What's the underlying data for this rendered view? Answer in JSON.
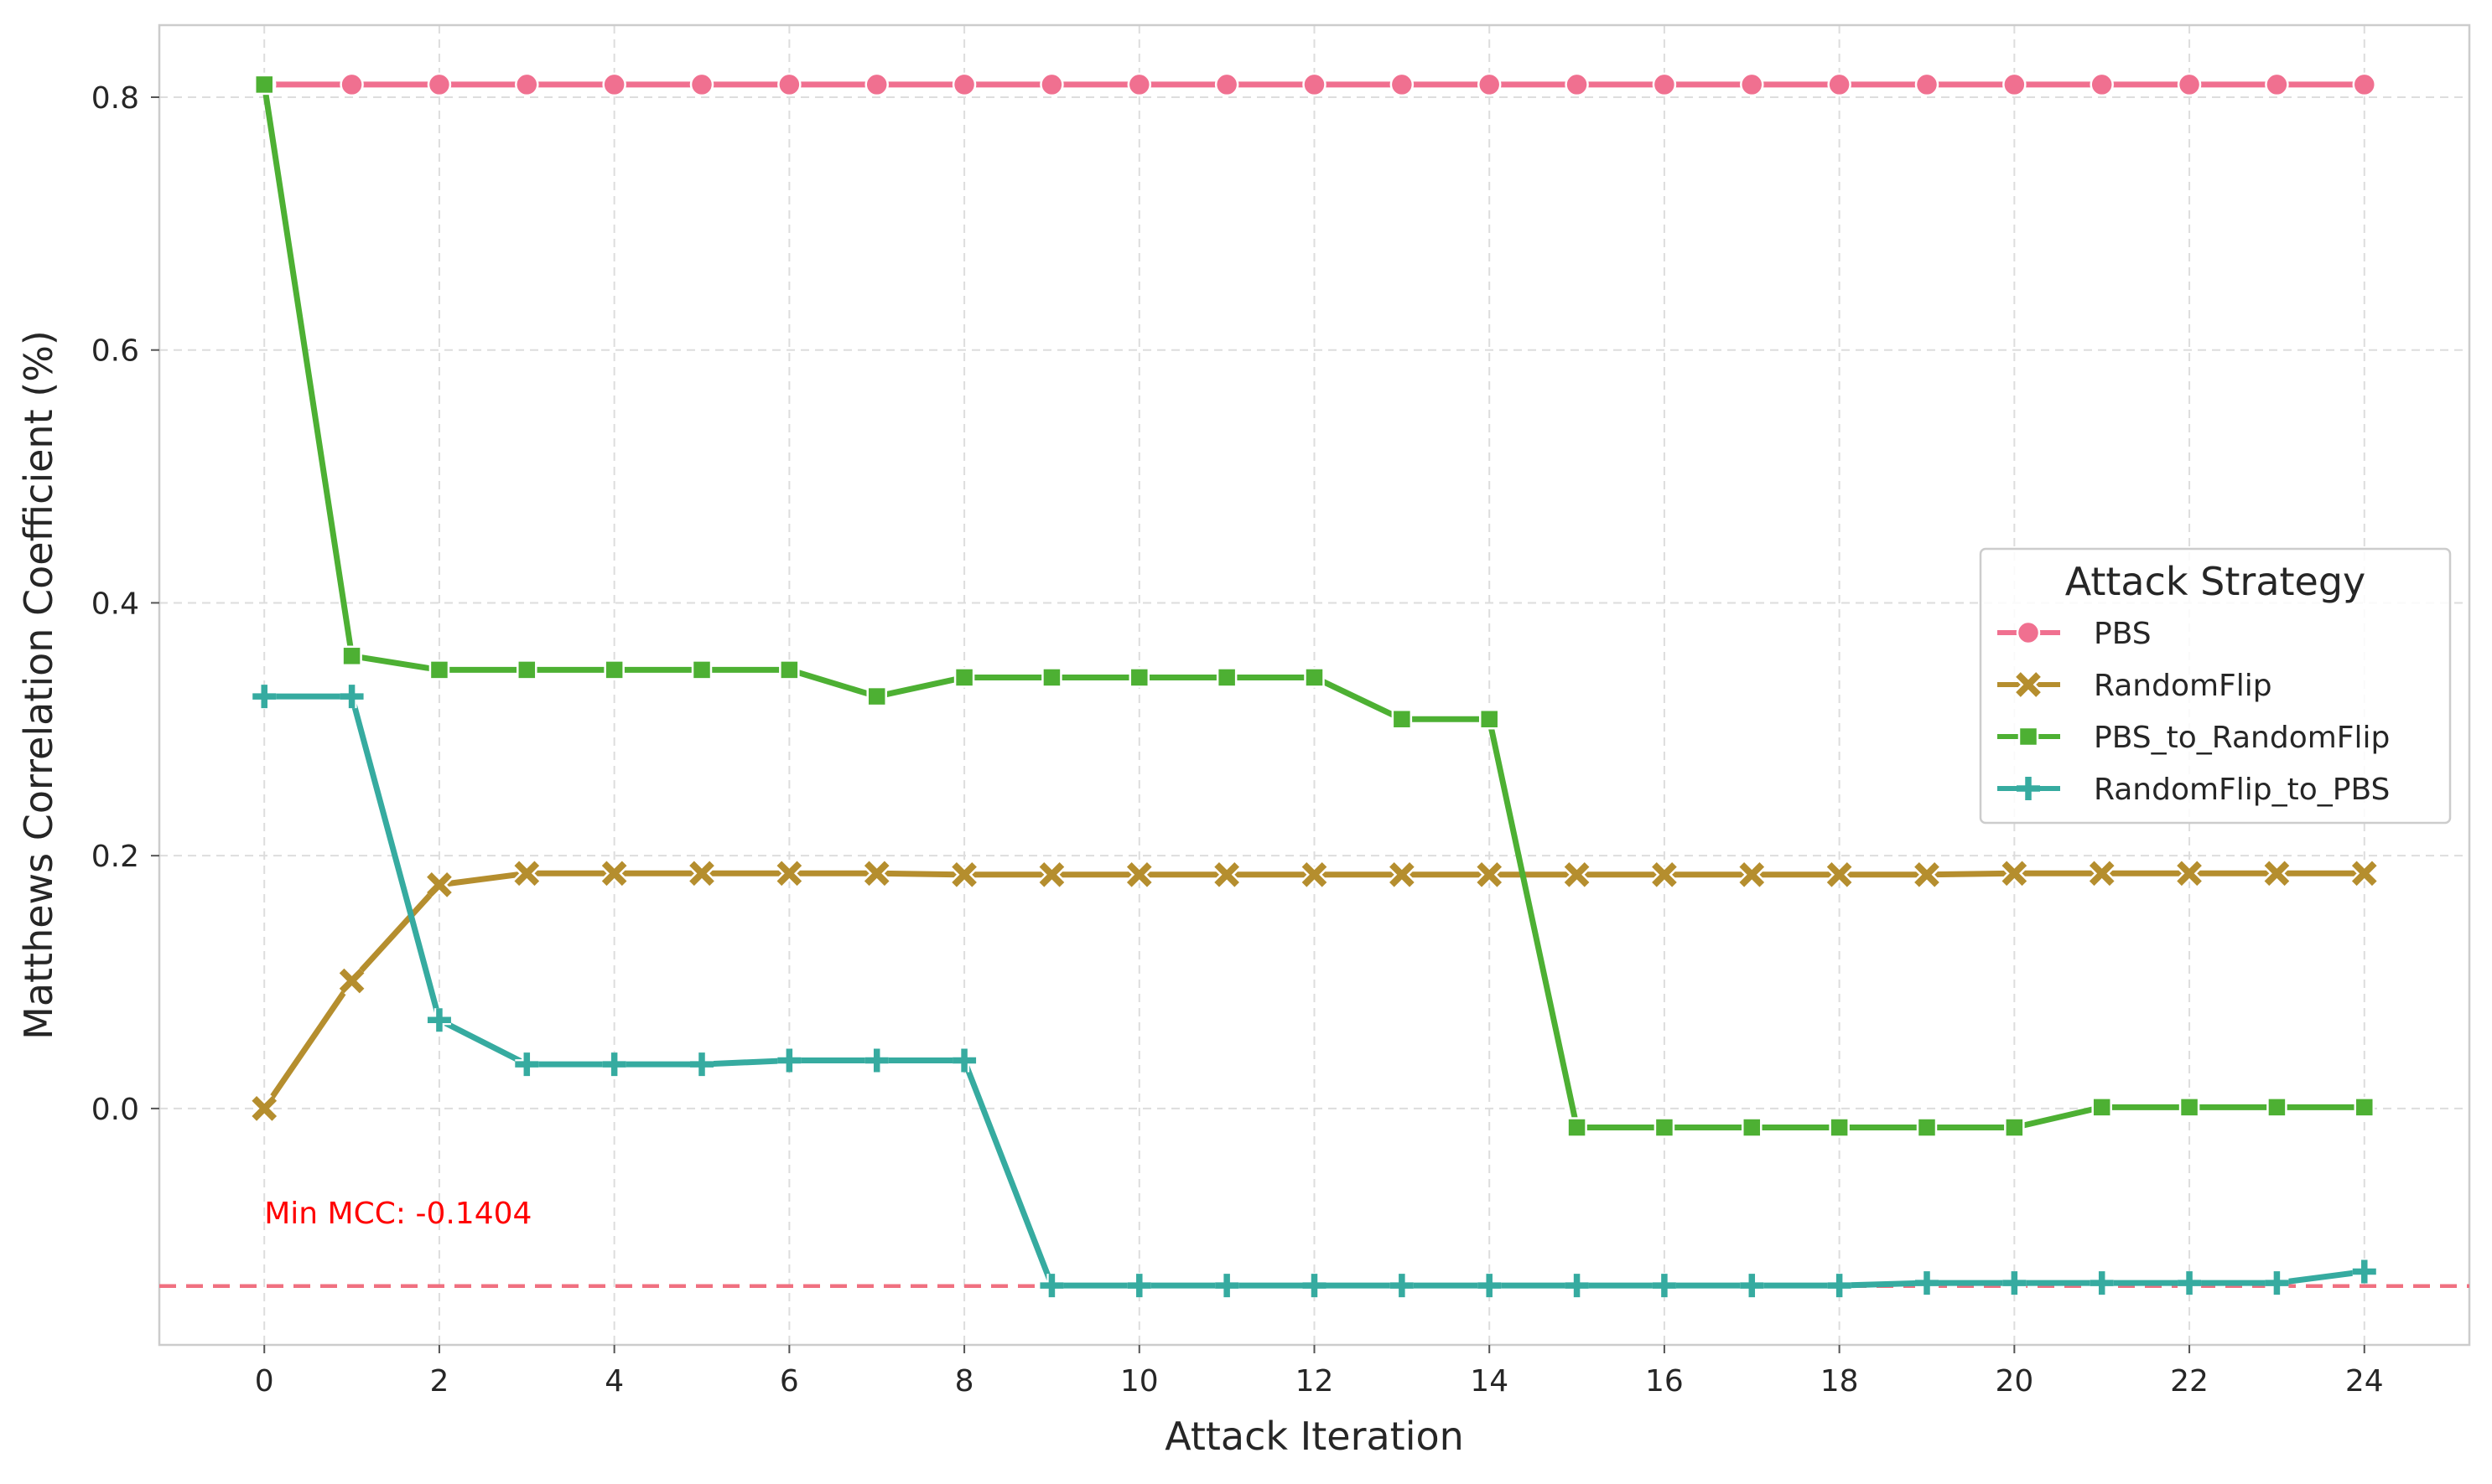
{
  "chart_data": {
    "type": "line",
    "title": "",
    "xlabel": "Attack Iteration",
    "ylabel": "Matthews Correlation Coefficient (%)",
    "xlim": [
      -1.2,
      25.2
    ],
    "ylim": [
      -0.187,
      0.857
    ],
    "x_ticks": [
      0,
      2,
      4,
      6,
      8,
      10,
      12,
      14,
      16,
      18,
      20,
      22,
      24
    ],
    "y_ticks": [
      0.0,
      0.2,
      0.4,
      0.6,
      0.8
    ],
    "y_tick_labels": [
      "0.0",
      "0.2",
      "0.4",
      "0.6",
      "0.8"
    ],
    "grid": true,
    "legend": {
      "title": "Attack Strategy",
      "placement": "center-right"
    },
    "x": [
      0,
      1,
      2,
      3,
      4,
      5,
      6,
      7,
      8,
      9,
      10,
      11,
      12,
      13,
      14,
      15,
      16,
      17,
      18,
      19,
      20,
      21,
      22,
      23,
      24
    ],
    "series": [
      {
        "name": "PBS",
        "color": "#f07090",
        "marker": "circle",
        "values": [
          0.81,
          0.81,
          0.81,
          0.81,
          0.81,
          0.81,
          0.81,
          0.81,
          0.81,
          0.81,
          0.81,
          0.81,
          0.81,
          0.81,
          0.81,
          0.81,
          0.81,
          0.81,
          0.81,
          0.81,
          0.81,
          0.81,
          0.81,
          0.81,
          0.81
        ]
      },
      {
        "name": "RandomFlip",
        "color": "#b58e2e",
        "marker": "x",
        "values": [
          0.0,
          0.101,
          0.177,
          0.186,
          0.186,
          0.186,
          0.186,
          0.186,
          0.185,
          0.185,
          0.185,
          0.185,
          0.185,
          0.185,
          0.185,
          0.185,
          0.185,
          0.185,
          0.185,
          0.185,
          0.186,
          0.186,
          0.186,
          0.186,
          0.186
        ]
      },
      {
        "name": "PBS_to_RandomFlip",
        "color": "#4db033",
        "marker": "square",
        "values": [
          0.81,
          0.358,
          0.347,
          0.347,
          0.347,
          0.347,
          0.347,
          0.326,
          0.341,
          0.341,
          0.341,
          0.341,
          0.341,
          0.308,
          0.308,
          -0.015,
          -0.015,
          -0.015,
          -0.015,
          -0.015,
          -0.015,
          0.001,
          0.001,
          0.001,
          0.001
        ]
      },
      {
        "name": "RandomFlip_to_PBS",
        "color": "#36aba0",
        "marker": "plus",
        "values": [
          0.326,
          0.326,
          0.07,
          0.035,
          0.035,
          0.035,
          0.038,
          0.038,
          0.038,
          -0.14,
          -0.14,
          -0.14,
          -0.14,
          -0.14,
          -0.14,
          -0.14,
          -0.14,
          -0.14,
          -0.14,
          -0.138,
          -0.138,
          -0.138,
          -0.138,
          -0.138,
          -0.129
        ]
      }
    ],
    "reference_line": {
      "y": -0.1404,
      "color": "#f07080",
      "style": "dashed"
    },
    "annotation": {
      "text": "Min MCC: -0.1404",
      "x": 0,
      "y": -0.083,
      "color": "#ff0000"
    }
  }
}
